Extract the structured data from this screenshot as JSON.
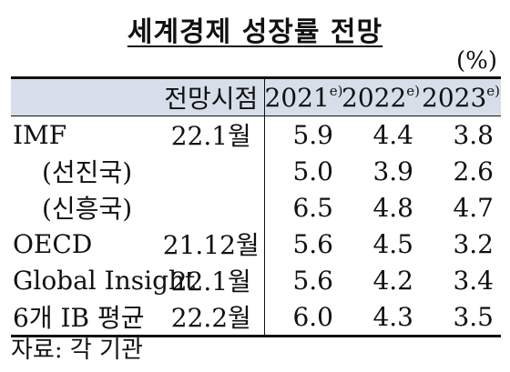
{
  "title": "세계경제 성장률 전망",
  "unit": "(%)",
  "table": {
    "header": {
      "col_date": "전망시점",
      "years": [
        {
          "year": "2021",
          "mark": "e)"
        },
        {
          "year": "2022",
          "mark": "e)"
        },
        {
          "year": "2023",
          "mark": "e)"
        }
      ]
    },
    "rows": [
      {
        "label": "IMF",
        "date": "22.1월",
        "v2021": "5.9",
        "v2022": "4.4",
        "v2023": "3.8",
        "sub": false
      },
      {
        "label": "(선진국)",
        "date": "",
        "v2021": "5.0",
        "v2022": "3.9",
        "v2023": "2.6",
        "sub": true
      },
      {
        "label": "(신흥국)",
        "date": "",
        "v2021": "6.5",
        "v2022": "4.8",
        "v2023": "4.7",
        "sub": true
      },
      {
        "label": "OECD",
        "date": "21.12월",
        "v2021": "5.6",
        "v2022": "4.5",
        "v2023": "3.2",
        "sub": false
      },
      {
        "label": "Global Insight",
        "date": "22.1월",
        "v2021": "5.6",
        "v2022": "4.2",
        "v2023": "3.4",
        "sub": false
      },
      {
        "label": "6개 IB 평균",
        "date": "22.2월",
        "v2021": "6.0",
        "v2022": "4.3",
        "v2023": "3.5",
        "sub": false
      }
    ]
  },
  "source": "자료: 각 기관"
}
